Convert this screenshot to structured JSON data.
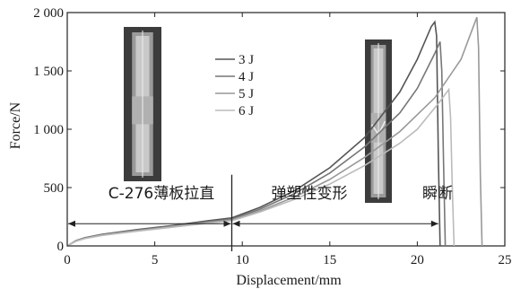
{
  "chart_data": {
    "type": "line",
    "xlabel": "Displacement/mm",
    "ylabel": "Force/N",
    "xlim": [
      0,
      25
    ],
    "ylim": [
      0,
      2000
    ],
    "xticks": [
      0,
      5,
      10,
      15,
      20,
      25
    ],
    "xtick_labels": [
      "0",
      "5",
      "10",
      "15",
      "20",
      "25"
    ],
    "yticks": [
      0,
      500,
      1000,
      1500,
      2000
    ],
    "ytick_labels": [
      "0",
      "500",
      "1 000",
      "1 500",
      "2 000"
    ],
    "grid": false,
    "legend_position": "top-center",
    "series": [
      {
        "name": "3 J",
        "color": "#555555",
        "x": [
          0,
          0.5,
          1,
          2,
          4,
          6,
          8,
          9.4,
          11,
          13,
          15,
          17,
          19,
          20,
          20.8,
          21.0,
          21.1,
          21.2,
          21.3
        ],
        "y": [
          0,
          45,
          70,
          100,
          140,
          175,
          215,
          240,
          330,
          475,
          670,
          930,
          1320,
          1600,
          1880,
          1920,
          1800,
          800,
          0
        ]
      },
      {
        "name": "4 J",
        "color": "#777777",
        "x": [
          0,
          0.5,
          1,
          2,
          4,
          6,
          8,
          9.4,
          11,
          13,
          15,
          17,
          19,
          20,
          21.0,
          21.3,
          21.4,
          21.5,
          21.6
        ],
        "y": [
          0,
          45,
          68,
          97,
          135,
          170,
          207,
          230,
          315,
          450,
          625,
          850,
          1140,
          1350,
          1650,
          1750,
          1500,
          700,
          0
        ]
      },
      {
        "name": "5 J",
        "color": "#999999",
        "x": [
          0,
          0.5,
          1,
          2,
          4,
          6,
          8,
          9.4,
          11,
          13,
          15,
          17,
          19,
          21,
          22.5,
          23.4,
          23.5,
          23.6,
          23.7
        ],
        "y": [
          0,
          42,
          65,
          93,
          130,
          165,
          200,
          222,
          300,
          420,
          570,
          760,
          980,
          1270,
          1600,
          1960,
          1700,
          600,
          0
        ]
      },
      {
        "name": "6 J",
        "color": "#bbbbbb",
        "x": [
          0,
          0.5,
          1,
          2,
          4,
          6,
          8,
          9.4,
          11,
          13,
          15,
          17,
          19,
          20,
          21.2,
          21.8,
          21.9,
          22.0,
          22.1
        ],
        "y": [
          0,
          40,
          63,
          90,
          126,
          160,
          195,
          216,
          290,
          400,
          530,
          690,
          880,
          1000,
          1220,
          1340,
          1100,
          500,
          0
        ]
      }
    ],
    "annotations": {
      "stage1": "C-276薄板拉直",
      "stage2": "弹塑性变形",
      "stage3": "瞬断",
      "divider_x": 9.4,
      "arrow_y": 190
    }
  }
}
